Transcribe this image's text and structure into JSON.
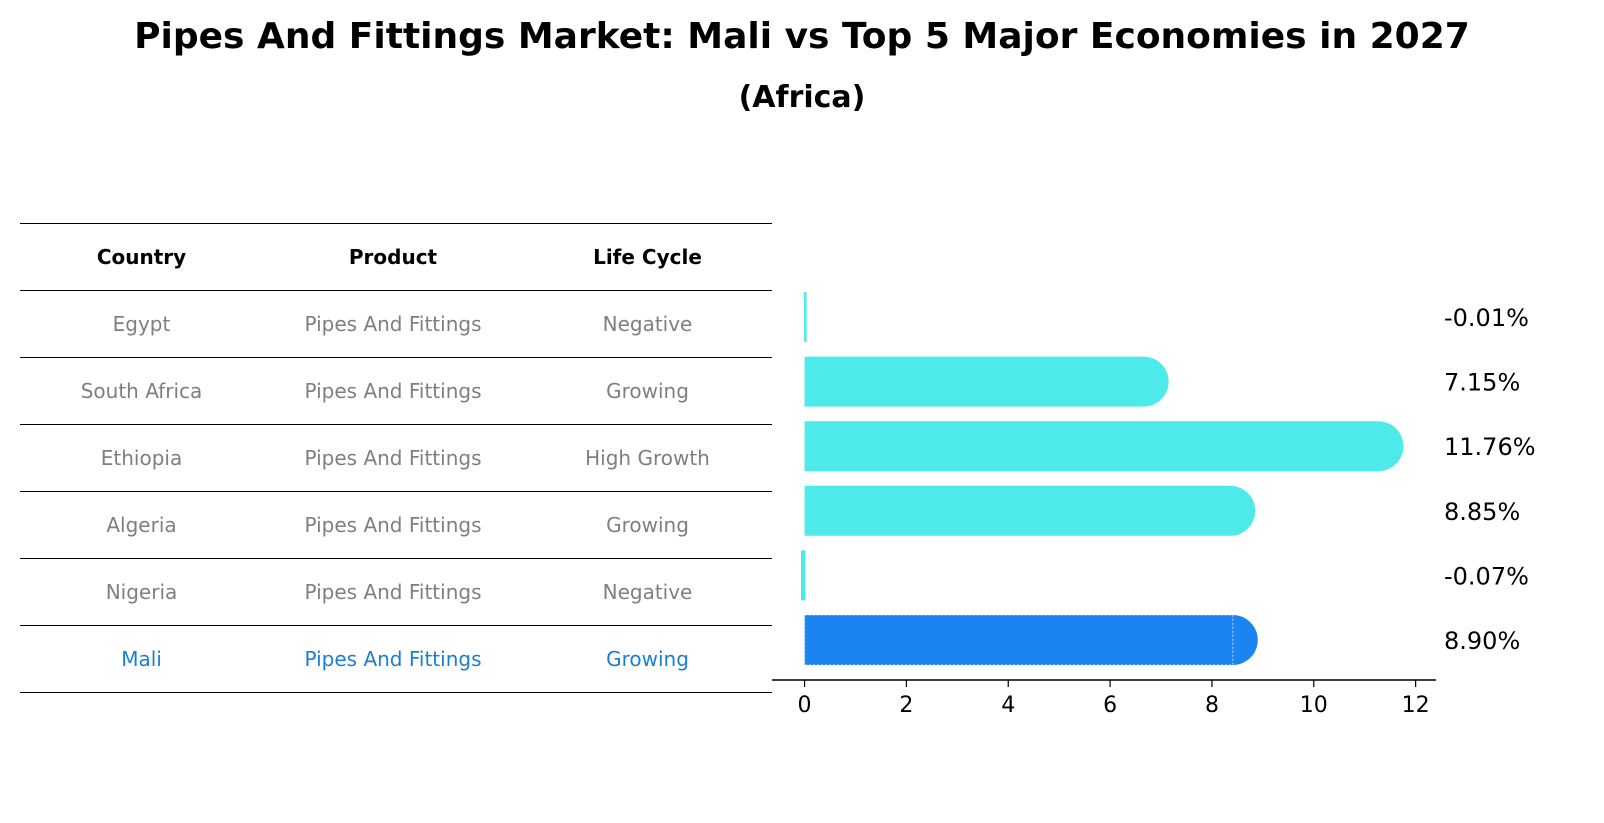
{
  "title": "Pipes And Fittings Market: Mali vs Top 5 Major Economies in 2027",
  "subtitle": "(Africa)",
  "table": {
    "headers": [
      "Country",
      "Product",
      "Life Cycle"
    ],
    "rows": [
      {
        "country": "Egypt",
        "product": "Pipes And Fittings",
        "life_cycle": "Negative"
      },
      {
        "country": "South Africa",
        "product": "Pipes And Fittings",
        "life_cycle": "Growing"
      },
      {
        "country": "Ethiopia",
        "product": "Pipes And Fittings",
        "life_cycle": "High Growth"
      },
      {
        "country": "Algeria",
        "product": "Pipes And Fittings",
        "life_cycle": "Growing"
      },
      {
        "country": "Nigeria",
        "product": "Pipes And Fittings",
        "life_cycle": "Negative"
      },
      {
        "country": "Mali",
        "product": "Pipes And Fittings",
        "life_cycle": "Growing"
      }
    ]
  },
  "colors": {
    "bar": "#4eeaea",
    "highlight_bar": "#1a84f0",
    "highlight_text": "#1a7fd4",
    "muted_text": "#7f7f7f"
  },
  "chart_data": {
    "type": "bar",
    "orientation": "horizontal",
    "categories": [
      "Egypt",
      "South Africa",
      "Ethiopia",
      "Algeria",
      "Nigeria",
      "Mali"
    ],
    "values": [
      -0.01,
      7.15,
      11.76,
      8.85,
      -0.07,
      8.9
    ],
    "value_labels": [
      "-0.01%",
      "7.15%",
      "11.76%",
      "8.85%",
      "-0.07%",
      "8.90%"
    ],
    "highlight": "Mali",
    "xlim": [
      -0.6,
      12.4
    ],
    "xticks": [
      0,
      2,
      4,
      6,
      8,
      10,
      12
    ],
    "xlabel": "",
    "ylabel": ""
  }
}
